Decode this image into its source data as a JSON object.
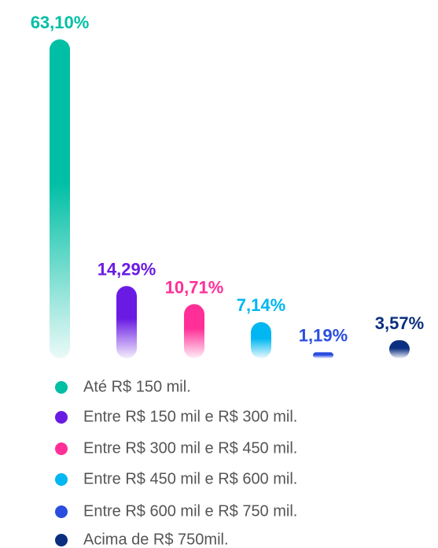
{
  "chart_data": {
    "type": "bar",
    "categories": [
      "Até R$ 150 mil.",
      "Entre R$ 150 mil e R$ 300 mil.",
      "Entre R$ 300 mil e R$ 450 mil.",
      "Entre R$ 450 mil e R$ 600 mil.",
      "Entre R$ 600 mil e R$ 750 mil.",
      "Acima de R$ 750mil."
    ],
    "values": [
      63.1,
      14.29,
      10.71,
      7.14,
      1.19,
      3.57
    ],
    "value_labels": [
      "63,10%",
      "14,29%",
      "10,71%",
      "7,14%",
      "1,19%",
      "3,57%"
    ],
    "colors": [
      "#00bfa5",
      "#6a1be3",
      "#ff2f97",
      "#00b7f1",
      "#2a4de0",
      "#0b2f80"
    ]
  }
}
